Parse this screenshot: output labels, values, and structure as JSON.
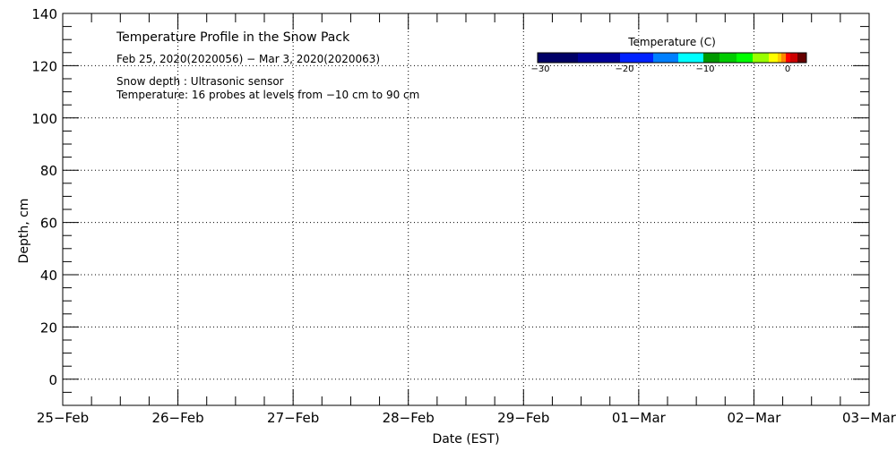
{
  "chart_data": {
    "type": "heatmap",
    "title": "Temperature Profile in the Snow Pack",
    "subtitle": "Feb 25, 2020(2020056) − Mar  3, 2020(2020063)",
    "annotations": [
      "Snow depth : Ultrasonic sensor",
      "Temperature: 16 probes at levels from −10 cm to 90 cm"
    ],
    "xlabel": "Date (EST)",
    "ylabel": "Depth, cm",
    "x_ticks": [
      "25−Feb",
      "26−Feb",
      "27−Feb",
      "28−Feb",
      "29−Feb",
      "01−Mar",
      "02−Mar",
      "03−Mar"
    ],
    "y_ticks": [
      0,
      20,
      40,
      60,
      80,
      100,
      120,
      140
    ],
    "ylim": [
      -10,
      140
    ],
    "grid": true,
    "series": [],
    "colorbar": {
      "label": "Temperature (C)",
      "tick_labels": [
        "−30",
        "−20",
        "−10",
        "0"
      ],
      "colors": [
        "#000066",
        "#000099",
        "#0022ff",
        "#0080ff",
        "#00ffff",
        "#009900",
        "#00cc00",
        "#00ff00",
        "#99ff00",
        "#ffff00",
        "#ffcc00",
        "#ff8800",
        "#ff0000",
        "#cc0000",
        "#660000"
      ]
    }
  }
}
